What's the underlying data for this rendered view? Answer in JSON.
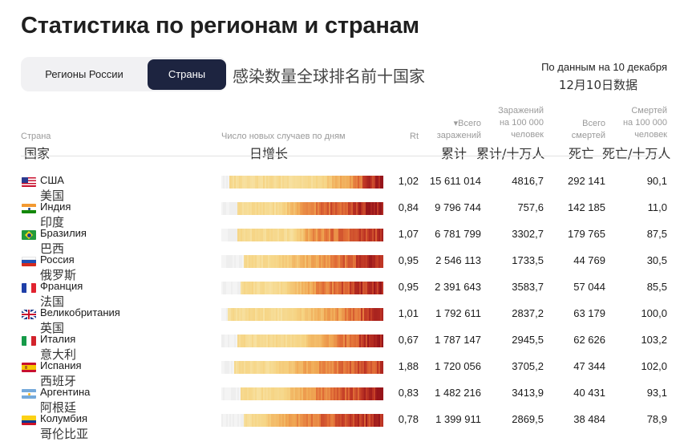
{
  "page_title": "Статистика по регионам и странам",
  "tabs": [
    {
      "label": "Регионы России",
      "active": false
    },
    {
      "label": "Страны",
      "active": true
    }
  ],
  "annotation_cn_title": "感染数量全球排名前十国家",
  "date_ru": "По данным на 10 декабря",
  "date_cn": "12月10日数据",
  "columns": {
    "country": {
      "ru": "Страна",
      "cn": "国家"
    },
    "chart": {
      "ru": "Число новых случаев по дням",
      "cn": "日增长"
    },
    "rt": {
      "ru": "Rt"
    },
    "total": {
      "ru_line1": "▾Всего",
      "ru_line2": "заражений",
      "cn": "累计"
    },
    "per100k": {
      "ru_line1": "Заражений",
      "ru_line2": "на 100 000",
      "ru_line3": "человек",
      "cn": "累计/十万人"
    },
    "deaths": {
      "ru_line1": "Всего",
      "ru_line2": "смертей",
      "cn": "死亡"
    },
    "deaths_per100k": {
      "ru_line1": "Смертей",
      "ru_line2": "на 100 000",
      "ru_line3": "человек",
      "cn": "死亡/十万人"
    }
  },
  "colors": {
    "active_tab": "#1d2440",
    "heat_low": "#f6d78c",
    "heat_mid": "#ee8a3a",
    "heat_high": "#a8161b"
  },
  "rows": [
    {
      "flag": "us-flag-icon",
      "name_ru": "США",
      "name_cn": "美国",
      "rt": "1,02",
      "total": "15 611 014",
      "per100k": "4816,7",
      "deaths": "292 141",
      "deaths_per100k": "90,1"
    },
    {
      "flag": "in-flag-icon",
      "name_ru": "Индия",
      "name_cn": "印度",
      "rt": "0,84",
      "total": "9 796 744",
      "per100k": "757,6",
      "deaths": "142 185",
      "deaths_per100k": "11,0"
    },
    {
      "flag": "br-flag-icon",
      "name_ru": "Бразилия",
      "name_cn": "巴西",
      "rt": "1,07",
      "total": "6 781 799",
      "per100k": "3302,7",
      "deaths": "179 765",
      "deaths_per100k": "87,5"
    },
    {
      "flag": "ru-flag-icon",
      "name_ru": "Россия",
      "name_cn": "俄罗斯",
      "rt": "0,95",
      "total": "2 546 113",
      "per100k": "1733,5",
      "deaths": "44 769",
      "deaths_per100k": "30,5"
    },
    {
      "flag": "fr-flag-icon",
      "name_ru": "Франция",
      "name_cn": "法国",
      "rt": "0,95",
      "total": "2 391 643",
      "per100k": "3583,7",
      "deaths": "57 044",
      "deaths_per100k": "85,5"
    },
    {
      "flag": "gb-flag-icon",
      "name_ru": "Великобритания",
      "name_cn": "英国",
      "rt": "1,01",
      "total": "1 792 611",
      "per100k": "2837,2",
      "deaths": "63 179",
      "deaths_per100k": "100,0"
    },
    {
      "flag": "it-flag-icon",
      "name_ru": "Италия",
      "name_cn": "意大利",
      "rt": "0,67",
      "total": "1 787 147",
      "per100k": "2945,5",
      "deaths": "62 626",
      "deaths_per100k": "103,2"
    },
    {
      "flag": "es-flag-icon",
      "name_ru": "Испания",
      "name_cn": "西班牙",
      "rt": "1,88",
      "total": "1 720 056",
      "per100k": "3705,2",
      "deaths": "47 344",
      "deaths_per100k": "102,0"
    },
    {
      "flag": "ar-flag-icon",
      "name_ru": "Аргентина",
      "name_cn": "阿根廷",
      "rt": "0,83",
      "total": "1 482 216",
      "per100k": "3413,9",
      "deaths": "40 431",
      "deaths_per100k": "93,1"
    },
    {
      "flag": "co-flag-icon",
      "name_ru": "Колумбия",
      "name_cn": "哥伦比亚",
      "rt": "0,78",
      "total": "1 399 911",
      "per100k": "2869,5",
      "deaths": "38 484",
      "deaths_per100k": "78,9"
    }
  ]
}
